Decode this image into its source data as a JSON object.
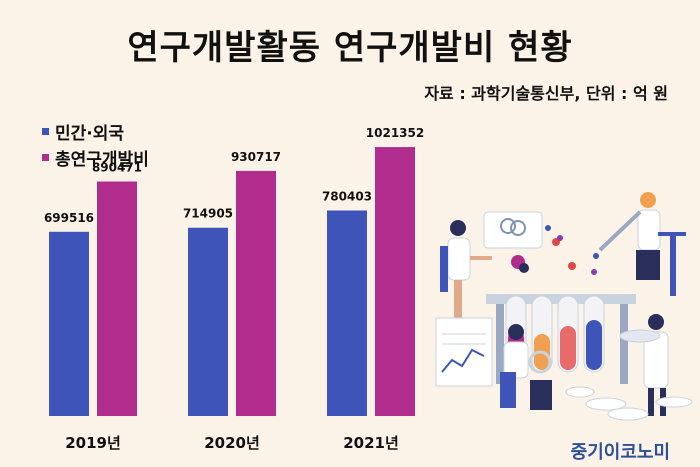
{
  "title": "연구개발활동 연구개발비 현황",
  "source_note": "자료 : 과학기술통신부, 단위 : 억 원",
  "brand": "중기이코노미",
  "colors": {
    "private_foreign": "#3e54b8",
    "total": "#b02d8e",
    "background": "#fbf3e8"
  },
  "legend": [
    {
      "label": "민간·외국",
      "color": "#3e54b8"
    },
    {
      "label": "총연구개발비",
      "color": "#b02d8e"
    }
  ],
  "chart_data": {
    "type": "bar",
    "categories": [
      "2019년",
      "2020년",
      "2021년"
    ],
    "series": [
      {
        "name": "민간·외국",
        "values": [
          699516,
          714905,
          780403
        ]
      },
      {
        "name": "총연구개발비",
        "values": [
          890471,
          930717,
          1021352
        ]
      }
    ],
    "title": "연구개발활동 연구개발비 현황",
    "xlabel": "",
    "ylabel": "",
    "ylim": [
      0,
      1200000
    ],
    "grid": false,
    "legend_position": "top-left"
  }
}
